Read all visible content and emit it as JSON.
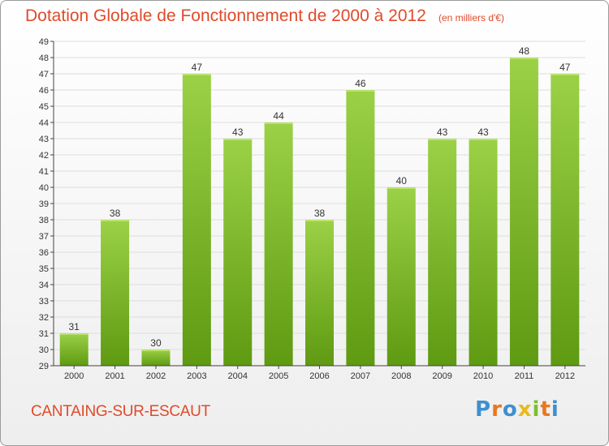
{
  "colors": {
    "title": "#e04a2a",
    "bar_top": "#9bd146",
    "bar_bottom": "#5e9a12",
    "axis": "#444444",
    "grid": "#dddddd",
    "logo": [
      "#3f8fd0",
      "#e9771e",
      "#3f8fd0",
      "#e8ba1d",
      "#7cbf2d",
      "#e9771e"
    ]
  },
  "header": {
    "title": "Dotation Globale de Fonctionnement de 2000 à 2012",
    "subtitle": "(en milliers d'€)"
  },
  "footer": {
    "commune": "CANTAING-SUR-ESCAUT",
    "logo_letters": [
      "P",
      "r",
      "o",
      "x",
      "i",
      "t",
      "i"
    ]
  },
  "chart_data": {
    "type": "bar",
    "title": "Dotation Globale de Fonctionnement de 2000 à 2012",
    "subtitle": "(en milliers d'€)",
    "categories": [
      "2000",
      "2001",
      "2002",
      "2003",
      "2004",
      "2005",
      "2006",
      "2007",
      "2008",
      "2009",
      "2010",
      "2011",
      "2012"
    ],
    "values": [
      31,
      38,
      30,
      47,
      43,
      44,
      38,
      46,
      40,
      43,
      43,
      48,
      47
    ],
    "ylim": [
      29,
      49
    ],
    "yticks": [
      29,
      30,
      31,
      32,
      33,
      34,
      35,
      36,
      37,
      38,
      39,
      40,
      41,
      42,
      43,
      44,
      45,
      46,
      47,
      48,
      49
    ],
    "data_labels": true,
    "grid": true
  }
}
